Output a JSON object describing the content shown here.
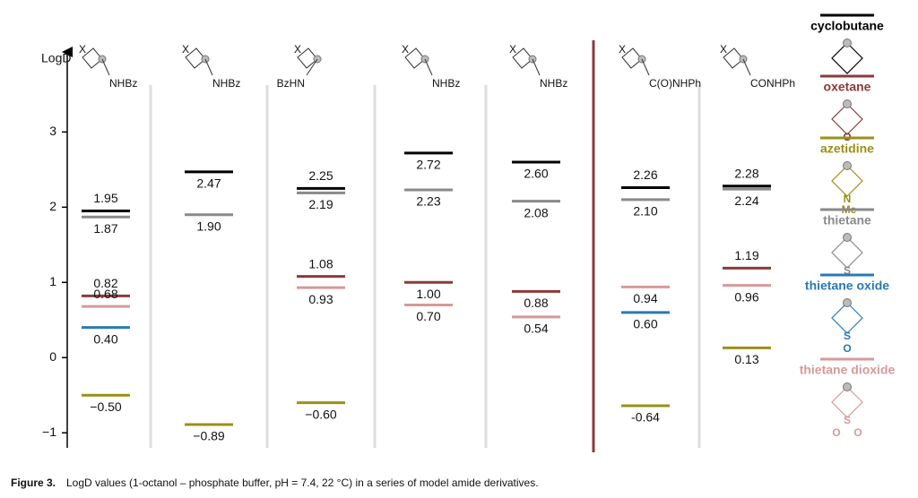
{
  "chart_data": {
    "type": "level",
    "y_label": "LogD",
    "ylim": [
      -1.2,
      4.1
    ],
    "yticks": [
      {
        "value": -1,
        "label": "−1"
      },
      0,
      1,
      2,
      3
    ],
    "structures": [
      {
        "atom": "X",
        "group": "NHBz"
      },
      {
        "atom": "X",
        "group": "NHBz"
      },
      {
        "atom": "X",
        "group": "BzHN"
      },
      {
        "atom": "X",
        "group": "NHBz"
      },
      {
        "atom": "X",
        "group": "NHBz"
      },
      {
        "atom": "X",
        "group": "C(O)NHPh"
      },
      {
        "atom": "X",
        "group": "CONHPh"
      }
    ],
    "series": [
      {
        "name": "cyclobutane",
        "color": "#000000",
        "ring_atoms": [],
        "values": [
          1.95,
          2.47,
          2.25,
          2.72,
          2.6,
          2.26,
          2.28
        ],
        "value_labels": [
          "1.95",
          "2.47",
          "2.25",
          "2.72",
          "2.60",
          "2.26",
          "2.28"
        ]
      },
      {
        "name": "oxetane",
        "color": "#8b3a3a",
        "ring_atoms": [
          "O"
        ],
        "values": [
          0.82,
          null,
          1.08,
          1.0,
          0.88,
          null,
          1.19
        ],
        "value_labels": [
          "0.82",
          null,
          "1.08",
          "1.00",
          "0.88",
          null,
          "1.19"
        ]
      },
      {
        "name": "azetidine",
        "color": "#9a9019",
        "ring_atoms": [
          "N",
          "Me"
        ],
        "values": [
          -0.5,
          -0.89,
          -0.6,
          null,
          null,
          -0.64,
          0.13
        ],
        "value_labels": [
          "−0.50",
          "−0.89",
          "−0.60",
          null,
          null,
          "-0.64",
          "0.13"
        ]
      },
      {
        "name": "thietane",
        "color": "#8a8a8a",
        "ring_atoms": [
          "S"
        ],
        "values": [
          1.87,
          1.9,
          2.19,
          2.23,
          2.08,
          2.1,
          2.24
        ],
        "value_labels": [
          "1.87",
          "1.90",
          "2.19",
          "2.23",
          "2.08",
          "2.10",
          "2.24"
        ]
      },
      {
        "name": "thietane oxide",
        "color": "#2a7ab5",
        "ring_atoms": [
          "S",
          "O"
        ],
        "values": [
          0.4,
          null,
          null,
          null,
          null,
          0.6,
          null
        ],
        "value_labels": [
          "0.40",
          null,
          null,
          null,
          null,
          "0.60",
          null
        ]
      },
      {
        "name": "thietane dioxide",
        "color": "#d69a9a",
        "ring_atoms": [
          "S",
          "O",
          "O"
        ],
        "values": [
          0.68,
          null,
          0.93,
          0.7,
          0.54,
          0.94,
          0.96
        ],
        "value_labels": [
          "0.68",
          null,
          "0.93",
          "0.70",
          "0.54",
          "0.94",
          "0.96"
        ]
      }
    ],
    "caption_label": "Figure 3.",
    "caption": "LogD values (1-octanol – phosphate buffer, pH = 7.4, 22 °C) in a series of model amide derivatives."
  }
}
